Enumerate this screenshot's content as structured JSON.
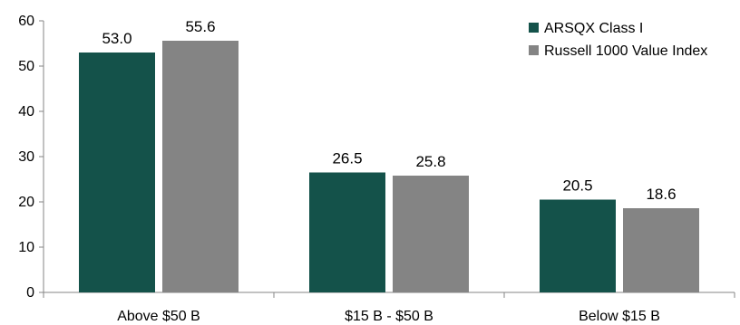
{
  "chart_data": {
    "type": "bar",
    "categories": [
      "Above $50 B",
      "$15 B - $50 B",
      "Below $15 B"
    ],
    "series": [
      {
        "name": "ARSQX Class I",
        "color": "#14524a",
        "values": [
          53.0,
          26.5,
          20.5
        ],
        "labels": [
          "53.0",
          "26.5",
          "20.5"
        ]
      },
      {
        "name": "Russell 1000 Value Index",
        "color": "#848484",
        "values": [
          55.6,
          25.8,
          18.6
        ],
        "labels": [
          "55.6",
          "25.8",
          "18.6"
        ]
      }
    ],
    "ylim": [
      0,
      60
    ],
    "yticks": [
      0,
      10,
      20,
      30,
      40,
      50,
      60
    ],
    "grid": false,
    "legend_position": "top-right"
  }
}
